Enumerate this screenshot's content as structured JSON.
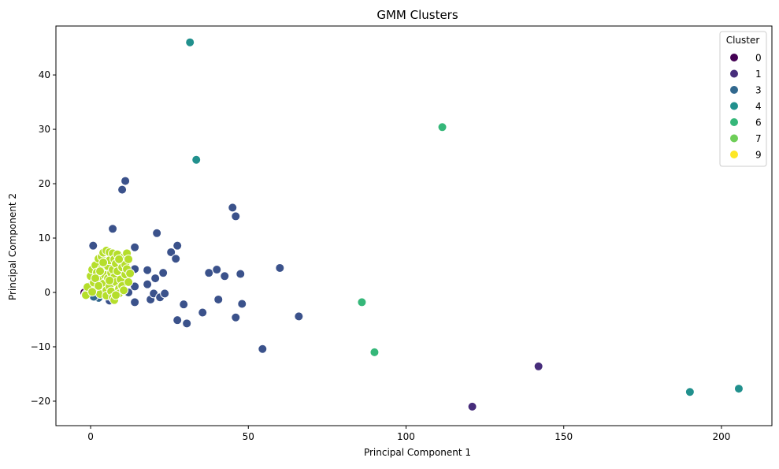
{
  "chart_data": {
    "type": "scatter",
    "title": "GMM Clusters",
    "xlabel": "Principal Component 1",
    "ylabel": "Principal Component 2",
    "xlim": [
      -11,
      216
    ],
    "ylim": [
      -24.5,
      49
    ],
    "xticks": [
      0,
      50,
      100,
      150,
      200
    ],
    "yticks": [
      -20,
      -10,
      0,
      10,
      20,
      30,
      40
    ],
    "grid": false,
    "legend": {
      "title": "Cluster",
      "placement": "top-right",
      "entries": [
        {
          "label": "0",
          "color": "#440154"
        },
        {
          "label": "1",
          "color": "#472d7b"
        },
        {
          "label": "3",
          "color": "#31688e"
        },
        {
          "label": "4",
          "color": "#21908d"
        },
        {
          "label": "6",
          "color": "#35b779"
        },
        {
          "label": "7",
          "color": "#6ece58"
        },
        {
          "label": "9",
          "color": "#fde725"
        }
      ]
    },
    "series": [
      {
        "color": "#3b528b",
        "points": [
          [
            0.8,
            8.6
          ],
          [
            7,
            11.7
          ],
          [
            10,
            18.9
          ],
          [
            11,
            20.5
          ],
          [
            14,
            8.3
          ],
          [
            14,
            4.3
          ],
          [
            14,
            1.1
          ],
          [
            14,
            -1.8
          ],
          [
            12,
            0
          ],
          [
            6,
            -1.5
          ],
          [
            18,
            4.1
          ],
          [
            18,
            1.5
          ],
          [
            19,
            -1.3
          ],
          [
            20,
            -0.2
          ],
          [
            20.5,
            2.6
          ],
          [
            21,
            10.9
          ],
          [
            22,
            -0.9
          ],
          [
            23,
            3.6
          ],
          [
            23.5,
            -0.2
          ],
          [
            25.5,
            7.4
          ],
          [
            27,
            6.2
          ],
          [
            27.5,
            8.6
          ],
          [
            27.5,
            -5.1
          ],
          [
            29.5,
            -2.2
          ],
          [
            30.5,
            -5.7
          ],
          [
            35.5,
            -3.7
          ],
          [
            37.5,
            3.6
          ],
          [
            40,
            4.2
          ],
          [
            40.5,
            -1.3
          ],
          [
            42.5,
            3
          ],
          [
            45,
            15.6
          ],
          [
            46,
            14
          ],
          [
            46,
            -4.6
          ],
          [
            47.5,
            3.4
          ],
          [
            48,
            -2.1
          ],
          [
            54.5,
            -10.4
          ],
          [
            60,
            4.5
          ],
          [
            66,
            -4.4
          ]
        ]
      },
      {
        "color": "#472d7b",
        "points": [
          [
            121,
            -21
          ],
          [
            142,
            -13.6
          ]
        ]
      },
      {
        "color": "#21908d",
        "points": [
          [
            31.5,
            46
          ],
          [
            33.5,
            24.4
          ],
          [
            190,
            -18.3
          ],
          [
            205.5,
            -17.7
          ]
        ]
      },
      {
        "color": "#35b779",
        "points": [
          [
            111.5,
            30.4
          ],
          [
            86,
            -1.8
          ],
          [
            90,
            -11
          ]
        ]
      },
      {
        "color": "#31688e",
        "points": [
          [
            -1,
            0.7
          ],
          [
            0,
            1.2
          ],
          [
            0.5,
            1.5
          ],
          [
            1,
            0.5
          ],
          [
            2,
            0.9
          ],
          [
            3,
            1.3
          ],
          [
            1.5,
            -0.5
          ],
          [
            0,
            -0.3
          ],
          [
            2.5,
            -1
          ],
          [
            -0.5,
            0.2
          ],
          [
            1,
            -0.8
          ]
        ]
      },
      {
        "color": "#440154",
        "points": [
          [
            -2,
            0
          ],
          [
            -1.5,
            -0.3
          ]
        ]
      },
      {
        "color": "#b5de2b",
        "points": [
          [
            -1.5,
            -0.5
          ],
          [
            -1,
            1
          ],
          [
            0,
            3
          ],
          [
            0.5,
            4.2
          ],
          [
            1,
            1.8
          ],
          [
            1.5,
            5
          ],
          [
            2,
            0.5
          ],
          [
            2,
            3.7
          ],
          [
            2.5,
            6.2
          ],
          [
            3,
            2.3
          ],
          [
            3,
            -0.3
          ],
          [
            3.5,
            6.6
          ],
          [
            3.5,
            4.4
          ],
          [
            4,
            7.3
          ],
          [
            4,
            1.6
          ],
          [
            4.5,
            5.5
          ],
          [
            4.5,
            3.2
          ],
          [
            5,
            7.7
          ],
          [
            5,
            0.4
          ],
          [
            5,
            -0.6
          ],
          [
            5.5,
            4.8
          ],
          [
            5.5,
            2.6
          ],
          [
            6,
            7.4
          ],
          [
            6,
            5.9
          ],
          [
            6,
            1.1
          ],
          [
            6.5,
            3.6
          ],
          [
            6.5,
            0.2
          ],
          [
            7,
            7.2
          ],
          [
            7,
            4.2
          ],
          [
            7,
            -1
          ],
          [
            7.5,
            6.1
          ],
          [
            7.5,
            2.8
          ],
          [
            7.5,
            -1.4
          ],
          [
            8,
            5.3
          ],
          [
            8,
            1.9
          ],
          [
            8.5,
            7
          ],
          [
            8.5,
            3.9
          ],
          [
            9,
            0.7
          ],
          [
            9,
            -0.2
          ],
          [
            9.5,
            5.8
          ],
          [
            9.5,
            2.4
          ],
          [
            10,
            4.6
          ],
          [
            10,
            1.2
          ],
          [
            10.5,
            6.5
          ],
          [
            10.5,
            0.4
          ],
          [
            11,
            5.1
          ],
          [
            11,
            3.3
          ],
          [
            11.5,
            7.2
          ],
          [
            11.5,
            4.3
          ],
          [
            12,
            1.9
          ],
          [
            12,
            6.1
          ],
          [
            12.5,
            3.5
          ],
          [
            3,
            3.9
          ],
          [
            1.5,
            2.6
          ],
          [
            4,
            5.5
          ],
          [
            8,
            -0.5
          ],
          [
            2.5,
            1.2
          ],
          [
            0.5,
            0.1
          ],
          [
            6,
            2.2
          ],
          [
            9,
            6.1
          ]
        ]
      }
    ]
  }
}
